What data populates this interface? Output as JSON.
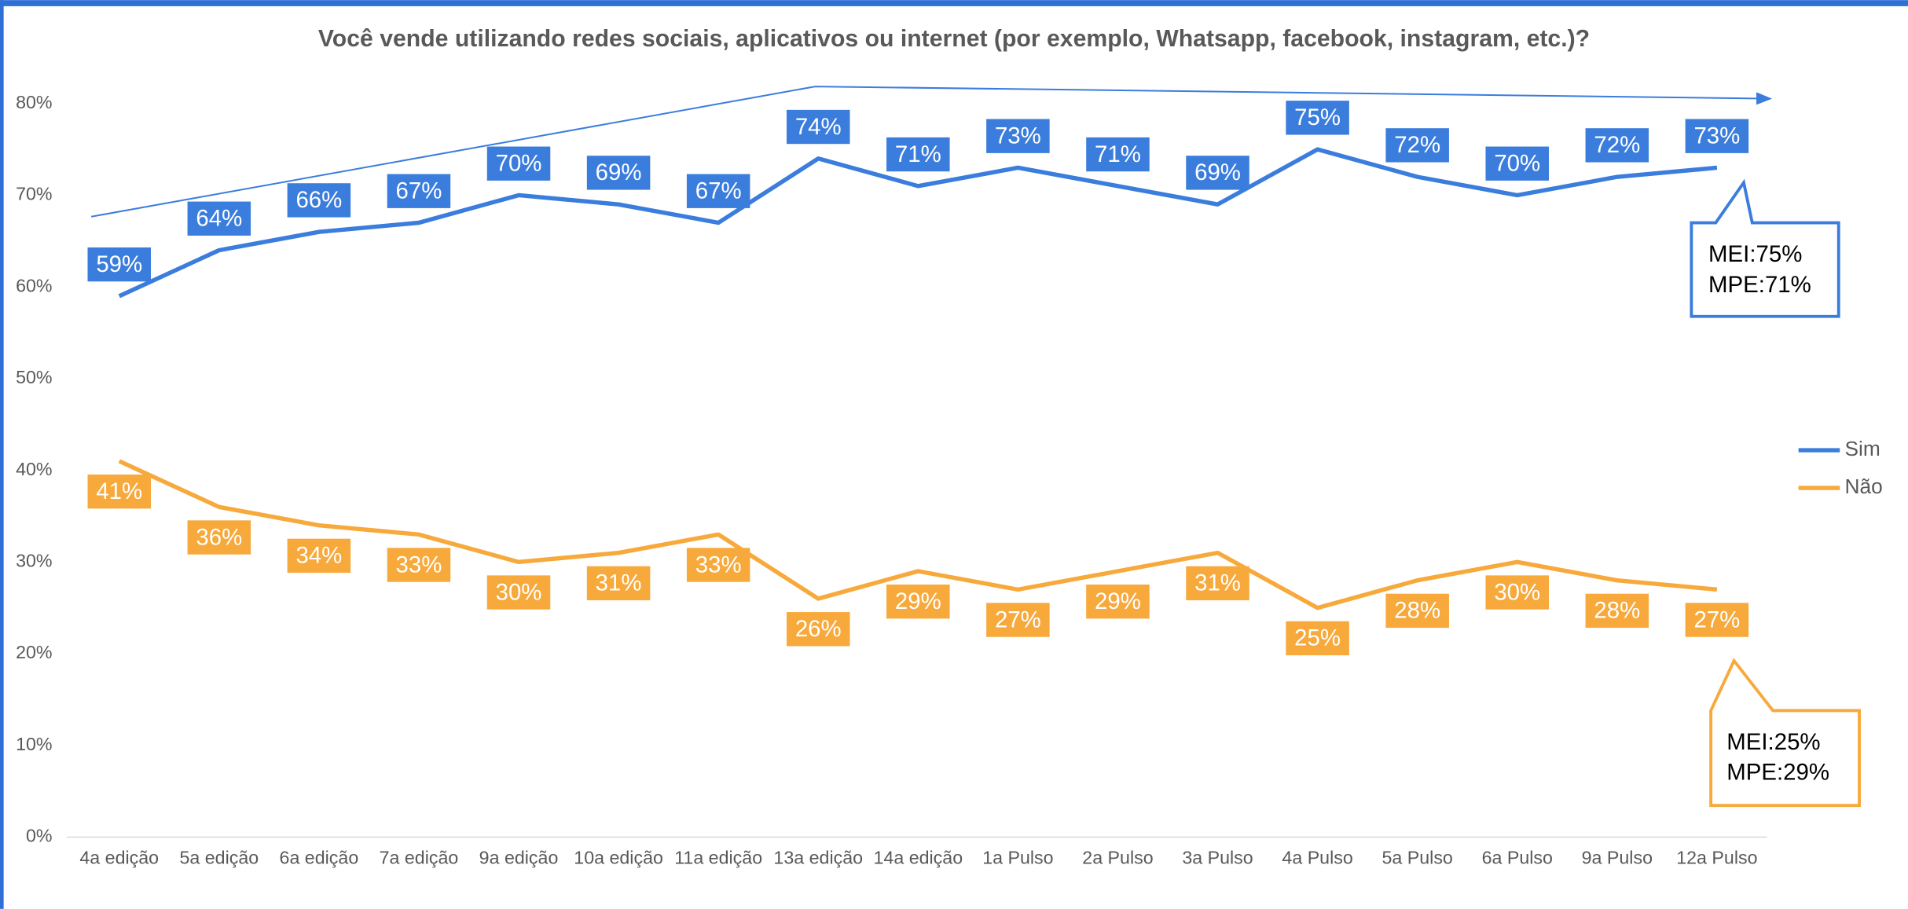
{
  "chart_data": {
    "type": "line",
    "title": "Você vende utilizando redes sociais, aplicativos ou internet (por exemplo, Whatsapp, facebook, instagram, etc.)?",
    "categories": [
      "4a edição",
      "5a edição",
      "6a edição",
      "7a edição",
      "9a edição",
      "10a edição",
      "11a edição",
      "13a edição",
      "14a edição",
      "1a Pulso",
      "2a Pulso",
      "3a Pulso",
      "4a Pulso",
      "5a Pulso",
      "6a Pulso",
      "9a Pulso",
      "12a Pulso"
    ],
    "series": [
      {
        "name": "Sim",
        "color": "#3b7ddd",
        "values": [
          59,
          64,
          66,
          67,
          70,
          69,
          67,
          74,
          71,
          73,
          71,
          69,
          75,
          72,
          70,
          72,
          73
        ],
        "value_labels": [
          "59%",
          "64%",
          "66%",
          "67%",
          "70%",
          "69%",
          "67%",
          "74%",
          "71%",
          "73%",
          "71%",
          "69%",
          "75%",
          "72%",
          "70%",
          "72%",
          "73%"
        ]
      },
      {
        "name": "Não",
        "color": "#f7a93b",
        "values": [
          41,
          36,
          34,
          33,
          30,
          31,
          33,
          26,
          29,
          27,
          29,
          31,
          25,
          28,
          30,
          28,
          27
        ],
        "value_labels": [
          "41%",
          "36%",
          "34%",
          "33%",
          "30%",
          "31%",
          "33%",
          "26%",
          "29%",
          "27%",
          "29%",
          "31%",
          "25%",
          "28%",
          "30%",
          "28%",
          "27%"
        ]
      }
    ],
    "ylim": [
      0,
      80
    ],
    "yticks": [
      {
        "value": 0,
        "label": "0%"
      },
      {
        "value": 10,
        "label": "10%"
      },
      {
        "value": 20,
        "label": "20%"
      },
      {
        "value": 30,
        "label": "30%"
      },
      {
        "value": 40,
        "label": "40%"
      },
      {
        "value": 50,
        "label": "50%"
      },
      {
        "value": 60,
        "label": "60%"
      },
      {
        "value": 70,
        "label": "70%"
      },
      {
        "value": 80,
        "label": "80%"
      }
    ],
    "grid": false,
    "legend": "right",
    "annotations": [
      [
        "MEI:75%",
        "MPE:71%"
      ],
      [
        "MEI:25%",
        "MPE:29%"
      ]
    ]
  }
}
